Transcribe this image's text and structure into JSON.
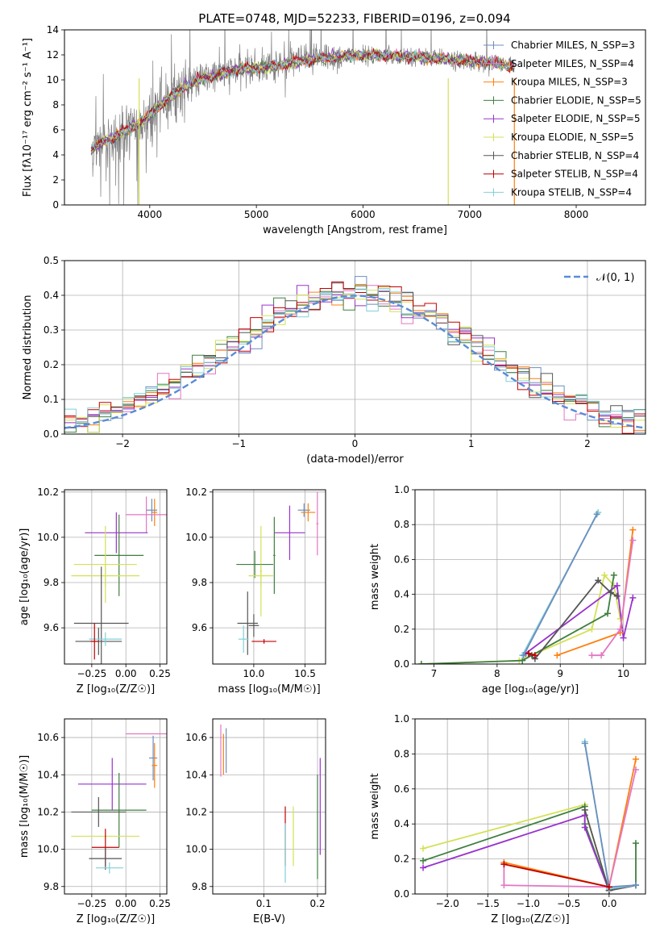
{
  "figure": {
    "title": "PLATE=0748, MJD=52233, FIBERID=0196, z=0.094"
  },
  "colors": {
    "chab_miles": "#6c8ebf",
    "salp_miles": "#e377c2",
    "kroupa_miles": "#ff7f0e",
    "chab_elodie": "#3f7f3f",
    "salp_elodie": "#9933cc",
    "kroupa_elodie": "#d4e157",
    "chab_stelib": "#555555",
    "salp_stelib": "#c00000",
    "kroupa_stelib": "#80d0d8",
    "gauss": "#5b8bd6",
    "grid": "#b0b0b0"
  },
  "chart_data": [
    {
      "id": "spectrum",
      "type": "line",
      "xlabel": "wavelength [Angstrom, rest frame]",
      "ylabel": "Flux [fλ10⁻¹⁷ erg cm⁻² s⁻¹ A⁻¹]",
      "xlim": [
        3200,
        8650
      ],
      "ylim": [
        0,
        14
      ],
      "xticks": [
        4000,
        5000,
        6000,
        7000,
        8000
      ],
      "yticks": [
        0,
        2,
        4,
        6,
        8,
        10,
        12,
        14
      ],
      "grid": false,
      "legend_placement": "upper-right",
      "legend": [
        {
          "label": "Chabrier MILES, N_SSP=3",
          "color_key": "chab_miles"
        },
        {
          "label": "Salpeter MILES, N_SSP=4",
          "color_key": "salp_miles"
        },
        {
          "label": "Kroupa MILES, N_SSP=3",
          "color_key": "kroupa_miles"
        },
        {
          "label": "Chabrier ELODIE, N_SSP=5",
          "color_key": "chab_elodie"
        },
        {
          "label": "Salpeter ELODIE, N_SSP=5",
          "color_key": "salp_elodie"
        },
        {
          "label": "Kroupa ELODIE, N_SSP=5",
          "color_key": "kroupa_elodie"
        },
        {
          "label": "Chabrier STELIB, N_SSP=4",
          "color_key": "chab_stelib"
        },
        {
          "label": "Salpeter STELIB, N_SSP=4",
          "color_key": "salp_stelib"
        },
        {
          "label": "Kroupa STELIB, N_SSP=4",
          "color_key": "kroupa_stelib"
        }
      ],
      "model_curve": {
        "x": [
          3450,
          3600,
          3800,
          3950,
          4100,
          4300,
          4500,
          4700,
          4900,
          5100,
          5300,
          5500,
          5800,
          6100,
          6400,
          6700,
          7000,
          7200,
          7420
        ],
        "y": [
          4.4,
          5.2,
          6.0,
          6.8,
          8.0,
          9.3,
          10.1,
          10.6,
          10.9,
          11.0,
          11.3,
          11.6,
          11.9,
          12.0,
          11.9,
          11.7,
          11.5,
          11.4,
          11.1
        ]
      },
      "cutoffs": [
        3450,
        7420
      ],
      "vertical_lines": [
        {
          "x": 3900,
          "color_key": "kroupa_elodie"
        },
        {
          "x": 6800,
          "color_key": "kroupa_elodie"
        },
        {
          "x": 7420,
          "color_key": "kroupa_miles"
        }
      ]
    },
    {
      "id": "residuals",
      "type": "line",
      "xlabel": "(data-model)/error",
      "ylabel": "Normed distribution",
      "xlim": [
        -2.5,
        2.5
      ],
      "ylim": [
        0,
        0.5
      ],
      "xticks": [
        -2,
        -1,
        0,
        1,
        2
      ],
      "xtick_labels": [
        "−2",
        "−1",
        "0",
        "1",
        "2"
      ],
      "yticks": [
        0.0,
        0.1,
        0.2,
        0.3,
        0.4,
        0.5
      ],
      "grid": true,
      "legend_placement": "upper-right",
      "legend": [
        {
          "label": "𝒩(0, 1)",
          "color_key": "gauss",
          "style": "dashed"
        }
      ],
      "bin_width": 0.1
    },
    {
      "id": "age_vs_Z",
      "type": "scatter",
      "xlabel": "Z [log₁₀(Z/Z☉)]",
      "ylabel": "age  [log₁₀(age/yr)]",
      "xlim": [
        -0.45,
        0.3
      ],
      "ylim": [
        9.44,
        10.21
      ],
      "xticks": [
        -0.25,
        0.0,
        0.25
      ],
      "xtick_labels": [
        "−0.25",
        "0.00",
        "0.25"
      ],
      "yticks": [
        9.6,
        9.8,
        10.0,
        10.2
      ],
      "grid": true,
      "errorbars": [
        {
          "x": 0.21,
          "y": 10.11,
          "xerr": 0.02,
          "yerr": 0.06,
          "color_key": "kroupa_miles"
        },
        {
          "x": 0.19,
          "y": 10.12,
          "xerr": 0.04,
          "yerr": 0.05,
          "color_key": "chab_miles"
        },
        {
          "x": 0.15,
          "y": 10.1,
          "xerr": 0.15,
          "yerr": 0.08,
          "color_key": "salp_miles"
        },
        {
          "x": -0.07,
          "y": 10.02,
          "xerr": 0.23,
          "yerr": 0.09,
          "color_key": "salp_elodie"
        },
        {
          "x": -0.05,
          "y": 9.92,
          "xerr": 0.18,
          "yerr": 0.18,
          "color_key": "chab_elodie"
        },
        {
          "x": -0.15,
          "y": 9.88,
          "xerr": 0.23,
          "yerr": 0.17,
          "color_key": "kroupa_elodie"
        },
        {
          "x": -0.15,
          "y": 9.83,
          "xerr": 0.25,
          "yerr": 0.05,
          "color_key": "kroupa_elodie"
        },
        {
          "x": -0.18,
          "y": 9.62,
          "xerr": 0.2,
          "yerr": 0.25,
          "color_key": "chab_stelib"
        },
        {
          "x": -0.2,
          "y": 9.54,
          "xerr": 0.17,
          "yerr": 0.06,
          "color_key": "chab_stelib"
        },
        {
          "x": -0.15,
          "y": 9.55,
          "xerr": 0.12,
          "yerr": 0.03,
          "color_key": "kroupa_stelib"
        },
        {
          "x": -0.23,
          "y": 9.54,
          "xerr": 0.03,
          "yerr": 0.08,
          "color_key": "salp_stelib"
        }
      ]
    },
    {
      "id": "age_vs_mass",
      "type": "scatter",
      "xlabel": "mass [log₁₀(M/M☉)]",
      "ylabel": "",
      "xlim": [
        9.6,
        10.7
      ],
      "ylim": [
        9.44,
        10.21
      ],
      "xticks": [
        10.0,
        10.5
      ],
      "xtick_labels": [
        "10.0",
        "10.5"
      ],
      "yticks": [
        9.6,
        9.8,
        10.0,
        10.2
      ],
      "grid": true,
      "errorbars": [
        {
          "x": 10.49,
          "y": 10.12,
          "xerr": 0.06,
          "yerr": 0.03,
          "color_key": "chab_miles"
        },
        {
          "x": 10.53,
          "y": 10.11,
          "xerr": 0.07,
          "yerr": 0.04,
          "color_key": "kroupa_miles"
        },
        {
          "x": 10.62,
          "y": 10.06,
          "xerr": 0.01,
          "yerr": 0.14,
          "color_key": "salp_miles"
        },
        {
          "x": 10.35,
          "y": 10.02,
          "xerr": 0.15,
          "yerr": 0.12,
          "color_key": "salp_elodie"
        },
        {
          "x": 10.2,
          "y": 9.92,
          "xerr": 0.01,
          "yerr": 0.17,
          "color_key": "chab_elodie"
        },
        {
          "x": 10.07,
          "y": 9.85,
          "xerr": 0.01,
          "yerr": 0.2,
          "color_key": "kroupa_elodie"
        },
        {
          "x": 10.01,
          "y": 9.88,
          "xerr": 0.18,
          "yerr": 0.06,
          "color_key": "chab_elodie"
        },
        {
          "x": 10.07,
          "y": 9.83,
          "xerr": 0.12,
          "yerr": 0.05,
          "color_key": "kroupa_elodie"
        },
        {
          "x": 9.94,
          "y": 9.62,
          "xerr": 0.1,
          "yerr": 0.14,
          "color_key": "chab_stelib"
        },
        {
          "x": 10.0,
          "y": 9.61,
          "xerr": 0.05,
          "yerr": 0.05,
          "color_key": "chab_stelib"
        },
        {
          "x": 10.1,
          "y": 9.54,
          "xerr": 0.12,
          "yerr": 0.01,
          "color_key": "salp_stelib"
        },
        {
          "x": 9.9,
          "y": 9.55,
          "xerr": 0.05,
          "yerr": 0.06,
          "color_key": "kroupa_stelib"
        }
      ]
    },
    {
      "id": "mw_vs_age",
      "type": "line",
      "xlabel": "age  [log₁₀(age/yr)]",
      "ylabel": "mass weight",
      "xlim": [
        6.7,
        10.35
      ],
      "ylim": [
        0,
        1
      ],
      "xticks": [
        7,
        8,
        9,
        10
      ],
      "yticks": [
        0.0,
        0.2,
        0.4,
        0.6,
        0.8,
        1.0
      ],
      "grid": true,
      "series": [
        {
          "color_key": "kroupa_elodie",
          "x": [
            6.8,
            8.35,
            9.5,
            9.7,
            9.85,
            9.95
          ],
          "y": [
            0.0,
            0.02,
            0.2,
            0.51,
            0.45,
            0.26
          ]
        },
        {
          "color_key": "chab_elodie",
          "x": [
            6.8,
            8.4,
            8.55,
            9.75,
            9.85
          ],
          "y": [
            0.0,
            0.02,
            0.05,
            0.29,
            0.51
          ]
        },
        {
          "color_key": "salp_elodie",
          "x": [
            8.45,
            9.9,
            10.0,
            10.15
          ],
          "y": [
            0.06,
            0.45,
            0.15,
            0.38
          ]
        },
        {
          "color_key": "chab_stelib",
          "x": [
            8.5,
            8.6,
            9.6,
            9.8,
            9.9
          ],
          "y": [
            0.06,
            0.03,
            0.48,
            0.41,
            0.39
          ]
        },
        {
          "color_key": "kroupa_stelib",
          "x": [
            8.4,
            9.6
          ],
          "y": [
            0.05,
            0.87
          ]
        },
        {
          "color_key": "chab_miles",
          "x": [
            8.42,
            9.58
          ],
          "y": [
            0.05,
            0.86
          ]
        },
        {
          "color_key": "kroupa_miles",
          "x": [
            8.95,
            9.95,
            10.15
          ],
          "y": [
            0.05,
            0.18,
            0.77
          ]
        },
        {
          "color_key": "salp_miles",
          "x": [
            9.5,
            9.65,
            9.95,
            10.15
          ],
          "y": [
            0.05,
            0.05,
            0.2,
            0.71
          ]
        },
        {
          "color_key": "salp_stelib",
          "x": [
            8.5,
            8.6
          ],
          "y": [
            0.06,
            0.05
          ]
        }
      ]
    },
    {
      "id": "mass_vs_Z",
      "type": "scatter",
      "xlabel": "Z [log₁₀(Z/Z☉)]",
      "ylabel": "mass [log₁₀(M/M☉)]",
      "xlim": [
        -0.45,
        0.3
      ],
      "ylim": [
        9.76,
        10.7
      ],
      "xticks": [
        -0.25,
        0.0,
        0.25
      ],
      "xtick_labels": [
        "−0.25",
        "0.00",
        "0.25"
      ],
      "yticks": [
        9.8,
        10.0,
        10.2,
        10.4,
        10.6
      ],
      "grid": true,
      "errorbars": [
        {
          "x": 0.15,
          "y": 10.62,
          "xerr": 0.15,
          "yerr": 0.0,
          "color_key": "salp_miles"
        },
        {
          "x": 0.2,
          "y": 10.49,
          "xerr": 0.03,
          "yerr": 0.12,
          "color_key": "chab_miles"
        },
        {
          "x": 0.21,
          "y": 10.45,
          "xerr": 0.02,
          "yerr": 0.12,
          "color_key": "kroupa_miles"
        },
        {
          "x": -0.1,
          "y": 10.35,
          "xerr": 0.25,
          "yerr": 0.14,
          "color_key": "salp_elodie"
        },
        {
          "x": -0.05,
          "y": 10.21,
          "xerr": 0.2,
          "yerr": 0.2,
          "color_key": "chab_elodie"
        },
        {
          "x": -0.2,
          "y": 10.2,
          "xerr": 0.2,
          "yerr": 0.08,
          "color_key": "chab_stelib"
        },
        {
          "x": -0.15,
          "y": 10.07,
          "xerr": 0.25,
          "yerr": 0.01,
          "color_key": "kroupa_elodie"
        },
        {
          "x": -0.15,
          "y": 10.01,
          "xerr": 0.1,
          "yerr": 0.1,
          "color_key": "salp_stelib"
        },
        {
          "x": -0.15,
          "y": 9.95,
          "xerr": 0.12,
          "yerr": 0.06,
          "color_key": "chab_stelib"
        },
        {
          "x": -0.12,
          "y": 9.9,
          "xerr": 0.1,
          "yerr": 0.03,
          "color_key": "kroupa_stelib"
        }
      ]
    },
    {
      "id": "mass_vs_ebv",
      "type": "scatter",
      "xlabel": "E(B-V)",
      "ylabel": "",
      "xlim": [
        0.005,
        0.215
      ],
      "ylim": [
        9.76,
        10.7
      ],
      "xticks": [
        0.1,
        0.2
      ],
      "xtick_labels": [
        "0.1",
        "0.2"
      ],
      "yticks": [
        9.8,
        10.0,
        10.2,
        10.4,
        10.6
      ],
      "grid": true,
      "errorbars": [
        {
          "x": 0.02,
          "y": 10.53,
          "xerr": 0.0,
          "yerr": 0.14,
          "color_key": "salp_miles"
        },
        {
          "x": 0.025,
          "y": 10.51,
          "xerr": 0.0,
          "yerr": 0.11,
          "color_key": "kroupa_miles"
        },
        {
          "x": 0.03,
          "y": 10.53,
          "xerr": 0.0,
          "yerr": 0.12,
          "color_key": "chab_miles"
        },
        {
          "x": 0.14,
          "y": 10.07,
          "xerr": 0.0,
          "yerr": 0.16,
          "color_key": "salp_stelib"
        },
        {
          "x": 0.14,
          "y": 9.98,
          "xerr": 0.0,
          "yerr": 0.16,
          "color_key": "kroupa_stelib"
        },
        {
          "x": 0.155,
          "y": 10.07,
          "xerr": 0.0,
          "yerr": 0.16,
          "color_key": "kroupa_elodie"
        },
        {
          "x": 0.2,
          "y": 10.12,
          "xerr": 0.0,
          "yerr": 0.28,
          "color_key": "chab_elodie"
        },
        {
          "x": 0.205,
          "y": 10.23,
          "xerr": 0.0,
          "yerr": 0.26,
          "color_key": "salp_elodie"
        }
      ]
    },
    {
      "id": "mw_vs_Z",
      "type": "line",
      "xlabel": "Z [log₁₀(Z/Z☉)]",
      "ylabel": "mass weight",
      "xlim": [
        -2.4,
        0.45
      ],
      "ylim": [
        0,
        1
      ],
      "xticks": [
        -2.0,
        -1.5,
        -1.0,
        -0.5,
        0.0
      ],
      "xtick_labels": [
        "−2.0",
        "−1.5",
        "−1.0",
        "−0.5",
        "0.0"
      ],
      "yticks": [
        0.0,
        0.2,
        0.4,
        0.6,
        0.8,
        1.0
      ],
      "grid": true,
      "series": [
        {
          "color_key": "kroupa_elodie",
          "x": [
            -2.3,
            -0.3,
            -0.3,
            0.0,
            0.33
          ],
          "y": [
            0.26,
            0.51,
            0.48,
            0.02,
            0.05
          ]
        },
        {
          "color_key": "chab_elodie",
          "x": [
            -2.3,
            -0.3,
            -0.3,
            0.0,
            0.33,
            0.33
          ],
          "y": [
            0.19,
            0.5,
            0.4,
            0.02,
            0.05,
            0.29
          ]
        },
        {
          "color_key": "salp_elodie",
          "x": [
            -2.3,
            -0.3,
            -0.3,
            0.0,
            0.33
          ],
          "y": [
            0.15,
            0.45,
            0.38,
            0.02,
            0.05
          ]
        },
        {
          "color_key": "chab_stelib",
          "x": [
            -0.3,
            0.0,
            0.33
          ],
          "y": [
            0.48,
            0.02,
            0.05
          ]
        },
        {
          "color_key": "kroupa_stelib",
          "x": [
            -0.3,
            0.0,
            0.33
          ],
          "y": [
            0.87,
            0.03,
            0.05
          ]
        },
        {
          "color_key": "chab_miles",
          "x": [
            -0.3,
            0.0,
            0.33
          ],
          "y": [
            0.86,
            0.04,
            0.05
          ]
        },
        {
          "color_key": "kroupa_miles",
          "x": [
            -1.3,
            0.0,
            0.33
          ],
          "y": [
            0.18,
            0.04,
            0.77
          ]
        },
        {
          "color_key": "salp_miles",
          "x": [
            -1.3,
            -1.3,
            0.0,
            0.33
          ],
          "y": [
            0.17,
            0.05,
            0.04,
            0.71
          ]
        },
        {
          "color_key": "salp_stelib",
          "x": [
            -1.3,
            0.0
          ],
          "y": [
            0.17,
            0.04
          ]
        }
      ]
    }
  ]
}
